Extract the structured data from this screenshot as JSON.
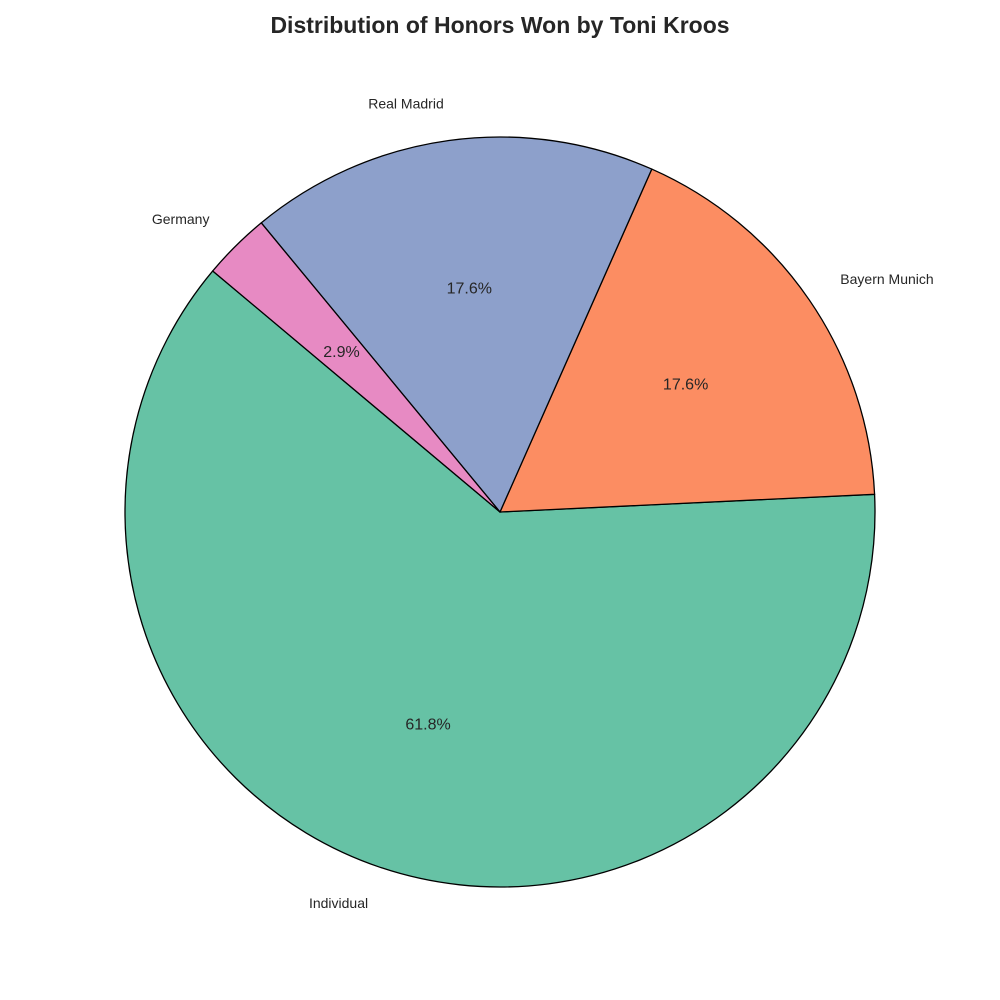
{
  "chart_data": {
    "type": "pie",
    "title": "Distribution of Honors Won by Toni Kroos",
    "start_angle_deg": 140,
    "direction": "counterclockwise",
    "slices": [
      {
        "label": "Individual",
        "value": 61.8,
        "pct_text": "61.8%",
        "color": "#66c2a5"
      },
      {
        "label": "Bayern Munich",
        "value": 17.6,
        "pct_text": "17.6%",
        "color": "#fc8d62"
      },
      {
        "label": "Real Madrid",
        "value": 17.6,
        "pct_text": "17.6%",
        "color": "#8da0cb"
      },
      {
        "label": "Germany",
        "value": 2.9,
        "pct_text": "2.9%",
        "color": "#e78ac3"
      }
    ],
    "edge_color": "#000000"
  }
}
